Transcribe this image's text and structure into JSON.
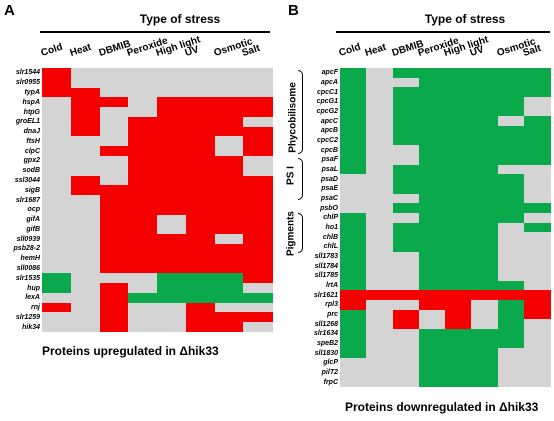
{
  "colors": {
    "red": "#f40000",
    "green": "#0aa94b",
    "grey": "#d4d4d4"
  },
  "panelA": {
    "letter": "A",
    "header": "Type of stress",
    "columns": [
      "Cold",
      "Heat",
      "DBMIB",
      "Peroxide",
      "High light",
      "UV",
      "Osmotic",
      "Salt"
    ],
    "footer": "Proteins upregulated in Δhik33",
    "rows": [
      {
        "name": "slr1544",
        "cells": [
          "R",
          "G",
          "G",
          "G",
          "G",
          "G",
          "G",
          "G"
        ]
      },
      {
        "name": "slr0955",
        "cells": [
          "R",
          "G",
          "G",
          "G",
          "G",
          "G",
          "G",
          "G"
        ]
      },
      {
        "name": "typA",
        "cells": [
          "R",
          "R",
          "G",
          "G",
          "G",
          "G",
          "G",
          "G"
        ]
      },
      {
        "name": "hspA",
        "cells": [
          "G",
          "R",
          "R",
          "G",
          "R",
          "R",
          "R",
          "R"
        ]
      },
      {
        "name": "htpG",
        "cells": [
          "G",
          "R",
          "G",
          "G",
          "R",
          "R",
          "R",
          "R"
        ]
      },
      {
        "name": "groEL1",
        "cells": [
          "G",
          "R",
          "G",
          "R",
          "R",
          "R",
          "R",
          "G"
        ]
      },
      {
        "name": "dnaJ",
        "cells": [
          "G",
          "R",
          "G",
          "R",
          "R",
          "R",
          "R",
          "R"
        ]
      },
      {
        "name": "ftsH",
        "cells": [
          "G",
          "G",
          "G",
          "R",
          "R",
          "R",
          "G",
          "R"
        ]
      },
      {
        "name": "clpC",
        "cells": [
          "G",
          "G",
          "R",
          "R",
          "R",
          "R",
          "G",
          "R"
        ]
      },
      {
        "name": "gpx2",
        "cells": [
          "G",
          "G",
          "G",
          "R",
          "R",
          "R",
          "R",
          "G"
        ]
      },
      {
        "name": "sodB",
        "cells": [
          "G",
          "G",
          "G",
          "R",
          "R",
          "R",
          "R",
          "G"
        ]
      },
      {
        "name": "ssl3044",
        "cells": [
          "G",
          "R",
          "G",
          "R",
          "R",
          "R",
          "R",
          "R"
        ]
      },
      {
        "name": "sigB",
        "cells": [
          "G",
          "R",
          "R",
          "R",
          "R",
          "R",
          "R",
          "R"
        ]
      },
      {
        "name": "slr1687",
        "cells": [
          "G",
          "G",
          "R",
          "R",
          "R",
          "R",
          "R",
          "R"
        ]
      },
      {
        "name": "ocp",
        "cells": [
          "G",
          "G",
          "R",
          "R",
          "R",
          "R",
          "R",
          "R"
        ]
      },
      {
        "name": "gifA",
        "cells": [
          "G",
          "G",
          "R",
          "R",
          "G",
          "R",
          "R",
          "R"
        ]
      },
      {
        "name": "gifB",
        "cells": [
          "G",
          "G",
          "R",
          "R",
          "G",
          "R",
          "R",
          "R"
        ]
      },
      {
        "name": "sll0939",
        "cells": [
          "G",
          "G",
          "R",
          "R",
          "R",
          "R",
          "G",
          "R"
        ]
      },
      {
        "name": "psb28-2",
        "cells": [
          "G",
          "G",
          "R",
          "R",
          "R",
          "R",
          "R",
          "R"
        ]
      },
      {
        "name": "hemH",
        "cells": [
          "G",
          "G",
          "R",
          "R",
          "R",
          "R",
          "R",
          "R"
        ]
      },
      {
        "name": "sll0086",
        "cells": [
          "G",
          "G",
          "R",
          "R",
          "R",
          "R",
          "R",
          "R"
        ]
      },
      {
        "name": "slr1535",
        "cells": [
          "N",
          "G",
          "G",
          "G",
          "N",
          "N",
          "N",
          "R"
        ]
      },
      {
        "name": "hup",
        "cells": [
          "N",
          "G",
          "R",
          "G",
          "N",
          "N",
          "N",
          "G"
        ]
      },
      {
        "name": "lexA",
        "cells": [
          "G",
          "G",
          "R",
          "N",
          "N",
          "N",
          "N",
          "N"
        ]
      },
      {
        "name": "rnj",
        "cells": [
          "R",
          "G",
          "R",
          "G",
          "G",
          "R",
          "G",
          "G"
        ]
      },
      {
        "name": "slr1259",
        "cells": [
          "G",
          "G",
          "R",
          "G",
          "G",
          "R",
          "R",
          "R"
        ]
      },
      {
        "name": "hik34",
        "cells": [
          "G",
          "G",
          "R",
          "G",
          "G",
          "R",
          "R",
          "G"
        ]
      }
    ]
  },
  "panelB": {
    "letter": "B",
    "header": "Type of stress",
    "columns": [
      "Cold",
      "Heat",
      "DBMIB",
      "Peroxide",
      "High light",
      "UV",
      "Osmotic",
      "Salt"
    ],
    "footer": "Proteins downregulated in Δhik33",
    "groups": [
      "Phycobilisome",
      "PS I",
      "Pigments"
    ],
    "rows": [
      {
        "name": "apcF",
        "cells": [
          "N",
          "G",
          "N",
          "N",
          "N",
          "N",
          "N",
          "N"
        ]
      },
      {
        "name": "apcA",
        "cells": [
          "N",
          "G",
          "G",
          "N",
          "N",
          "N",
          "N",
          "N"
        ]
      },
      {
        "name": "cpcC1",
        "cells": [
          "N",
          "G",
          "N",
          "N",
          "N",
          "N",
          "N",
          "N"
        ]
      },
      {
        "name": "cpcG1",
        "cells": [
          "N",
          "G",
          "N",
          "N",
          "N",
          "N",
          "N",
          "G"
        ]
      },
      {
        "name": "cpcG2",
        "cells": [
          "N",
          "G",
          "N",
          "N",
          "N",
          "N",
          "N",
          "G"
        ]
      },
      {
        "name": "apcC",
        "cells": [
          "N",
          "G",
          "N",
          "N",
          "N",
          "N",
          "G",
          "N"
        ]
      },
      {
        "name": "apcB",
        "cells": [
          "N",
          "G",
          "N",
          "N",
          "N",
          "N",
          "N",
          "N"
        ]
      },
      {
        "name": "cpcC2",
        "cells": [
          "N",
          "G",
          "N",
          "N",
          "N",
          "N",
          "N",
          "N"
        ]
      },
      {
        "name": "cpcB",
        "cells": [
          "N",
          "G",
          "G",
          "N",
          "N",
          "N",
          "N",
          "N"
        ]
      },
      {
        "name": "psaF",
        "cells": [
          "N",
          "G",
          "G",
          "N",
          "N",
          "N",
          "N",
          "N"
        ]
      },
      {
        "name": "psaL",
        "cells": [
          "N",
          "G",
          "N",
          "N",
          "N",
          "N",
          "G",
          "G"
        ]
      },
      {
        "name": "psaD",
        "cells": [
          "G",
          "G",
          "N",
          "N",
          "N",
          "N",
          "N",
          "G"
        ]
      },
      {
        "name": "psaE",
        "cells": [
          "G",
          "G",
          "N",
          "N",
          "N",
          "N",
          "N",
          "G"
        ]
      },
      {
        "name": "psaC",
        "cells": [
          "G",
          "G",
          "G",
          "N",
          "N",
          "N",
          "N",
          "G"
        ]
      },
      {
        "name": "psbO",
        "cells": [
          "G",
          "G",
          "N",
          "N",
          "N",
          "N",
          "N",
          "N"
        ]
      },
      {
        "name": "chlP",
        "cells": [
          "N",
          "G",
          "G",
          "N",
          "N",
          "N",
          "N",
          "G"
        ]
      },
      {
        "name": "ho1",
        "cells": [
          "N",
          "G",
          "N",
          "N",
          "N",
          "N",
          "G",
          "N"
        ]
      },
      {
        "name": "chlB",
        "cells": [
          "N",
          "G",
          "N",
          "N",
          "N",
          "N",
          "G",
          "G"
        ]
      },
      {
        "name": "chlL",
        "cells": [
          "N",
          "G",
          "N",
          "N",
          "N",
          "N",
          "G",
          "G"
        ]
      },
      {
        "name": "sll1783",
        "cells": [
          "N",
          "G",
          "G",
          "N",
          "N",
          "N",
          "G",
          "G"
        ]
      },
      {
        "name": "sll1784",
        "cells": [
          "N",
          "G",
          "G",
          "N",
          "N",
          "N",
          "G",
          "G"
        ]
      },
      {
        "name": "sll1785",
        "cells": [
          "N",
          "G",
          "G",
          "N",
          "N",
          "N",
          "G",
          "G"
        ]
      },
      {
        "name": "lrtA",
        "cells": [
          "N",
          "G",
          "G",
          "N",
          "N",
          "N",
          "N",
          "G"
        ]
      },
      {
        "name": "slr1621",
        "cells": [
          "R",
          "R",
          "R",
          "R",
          "R",
          "R",
          "R",
          "R"
        ]
      },
      {
        "name": "rpl3",
        "cells": [
          "R",
          "G",
          "G",
          "R",
          "R",
          "G",
          "N",
          "R"
        ]
      },
      {
        "name": "prc",
        "cells": [
          "N",
          "G",
          "R",
          "G",
          "R",
          "G",
          "N",
          "R"
        ]
      },
      {
        "name": "sll1268",
        "cells": [
          "N",
          "G",
          "R",
          "G",
          "R",
          "G",
          "N",
          "G"
        ]
      },
      {
        "name": "slr1634",
        "cells": [
          "N",
          "G",
          "G",
          "N",
          "N",
          "N",
          "N",
          "G"
        ]
      },
      {
        "name": "speB2",
        "cells": [
          "N",
          "G",
          "G",
          "N",
          "N",
          "N",
          "N",
          "G"
        ]
      },
      {
        "name": "sll1830",
        "cells": [
          "N",
          "G",
          "G",
          "N",
          "N",
          "N",
          "G",
          "G"
        ]
      },
      {
        "name": "glcP",
        "cells": [
          "G",
          "G",
          "G",
          "N",
          "N",
          "N",
          "G",
          "G"
        ]
      },
      {
        "name": "pilT2",
        "cells": [
          "G",
          "G",
          "G",
          "N",
          "N",
          "N",
          "G",
          "G"
        ]
      },
      {
        "name": "frpC",
        "cells": [
          "G",
          "G",
          "G",
          "N",
          "N",
          "N",
          "G",
          "G"
        ]
      }
    ]
  }
}
